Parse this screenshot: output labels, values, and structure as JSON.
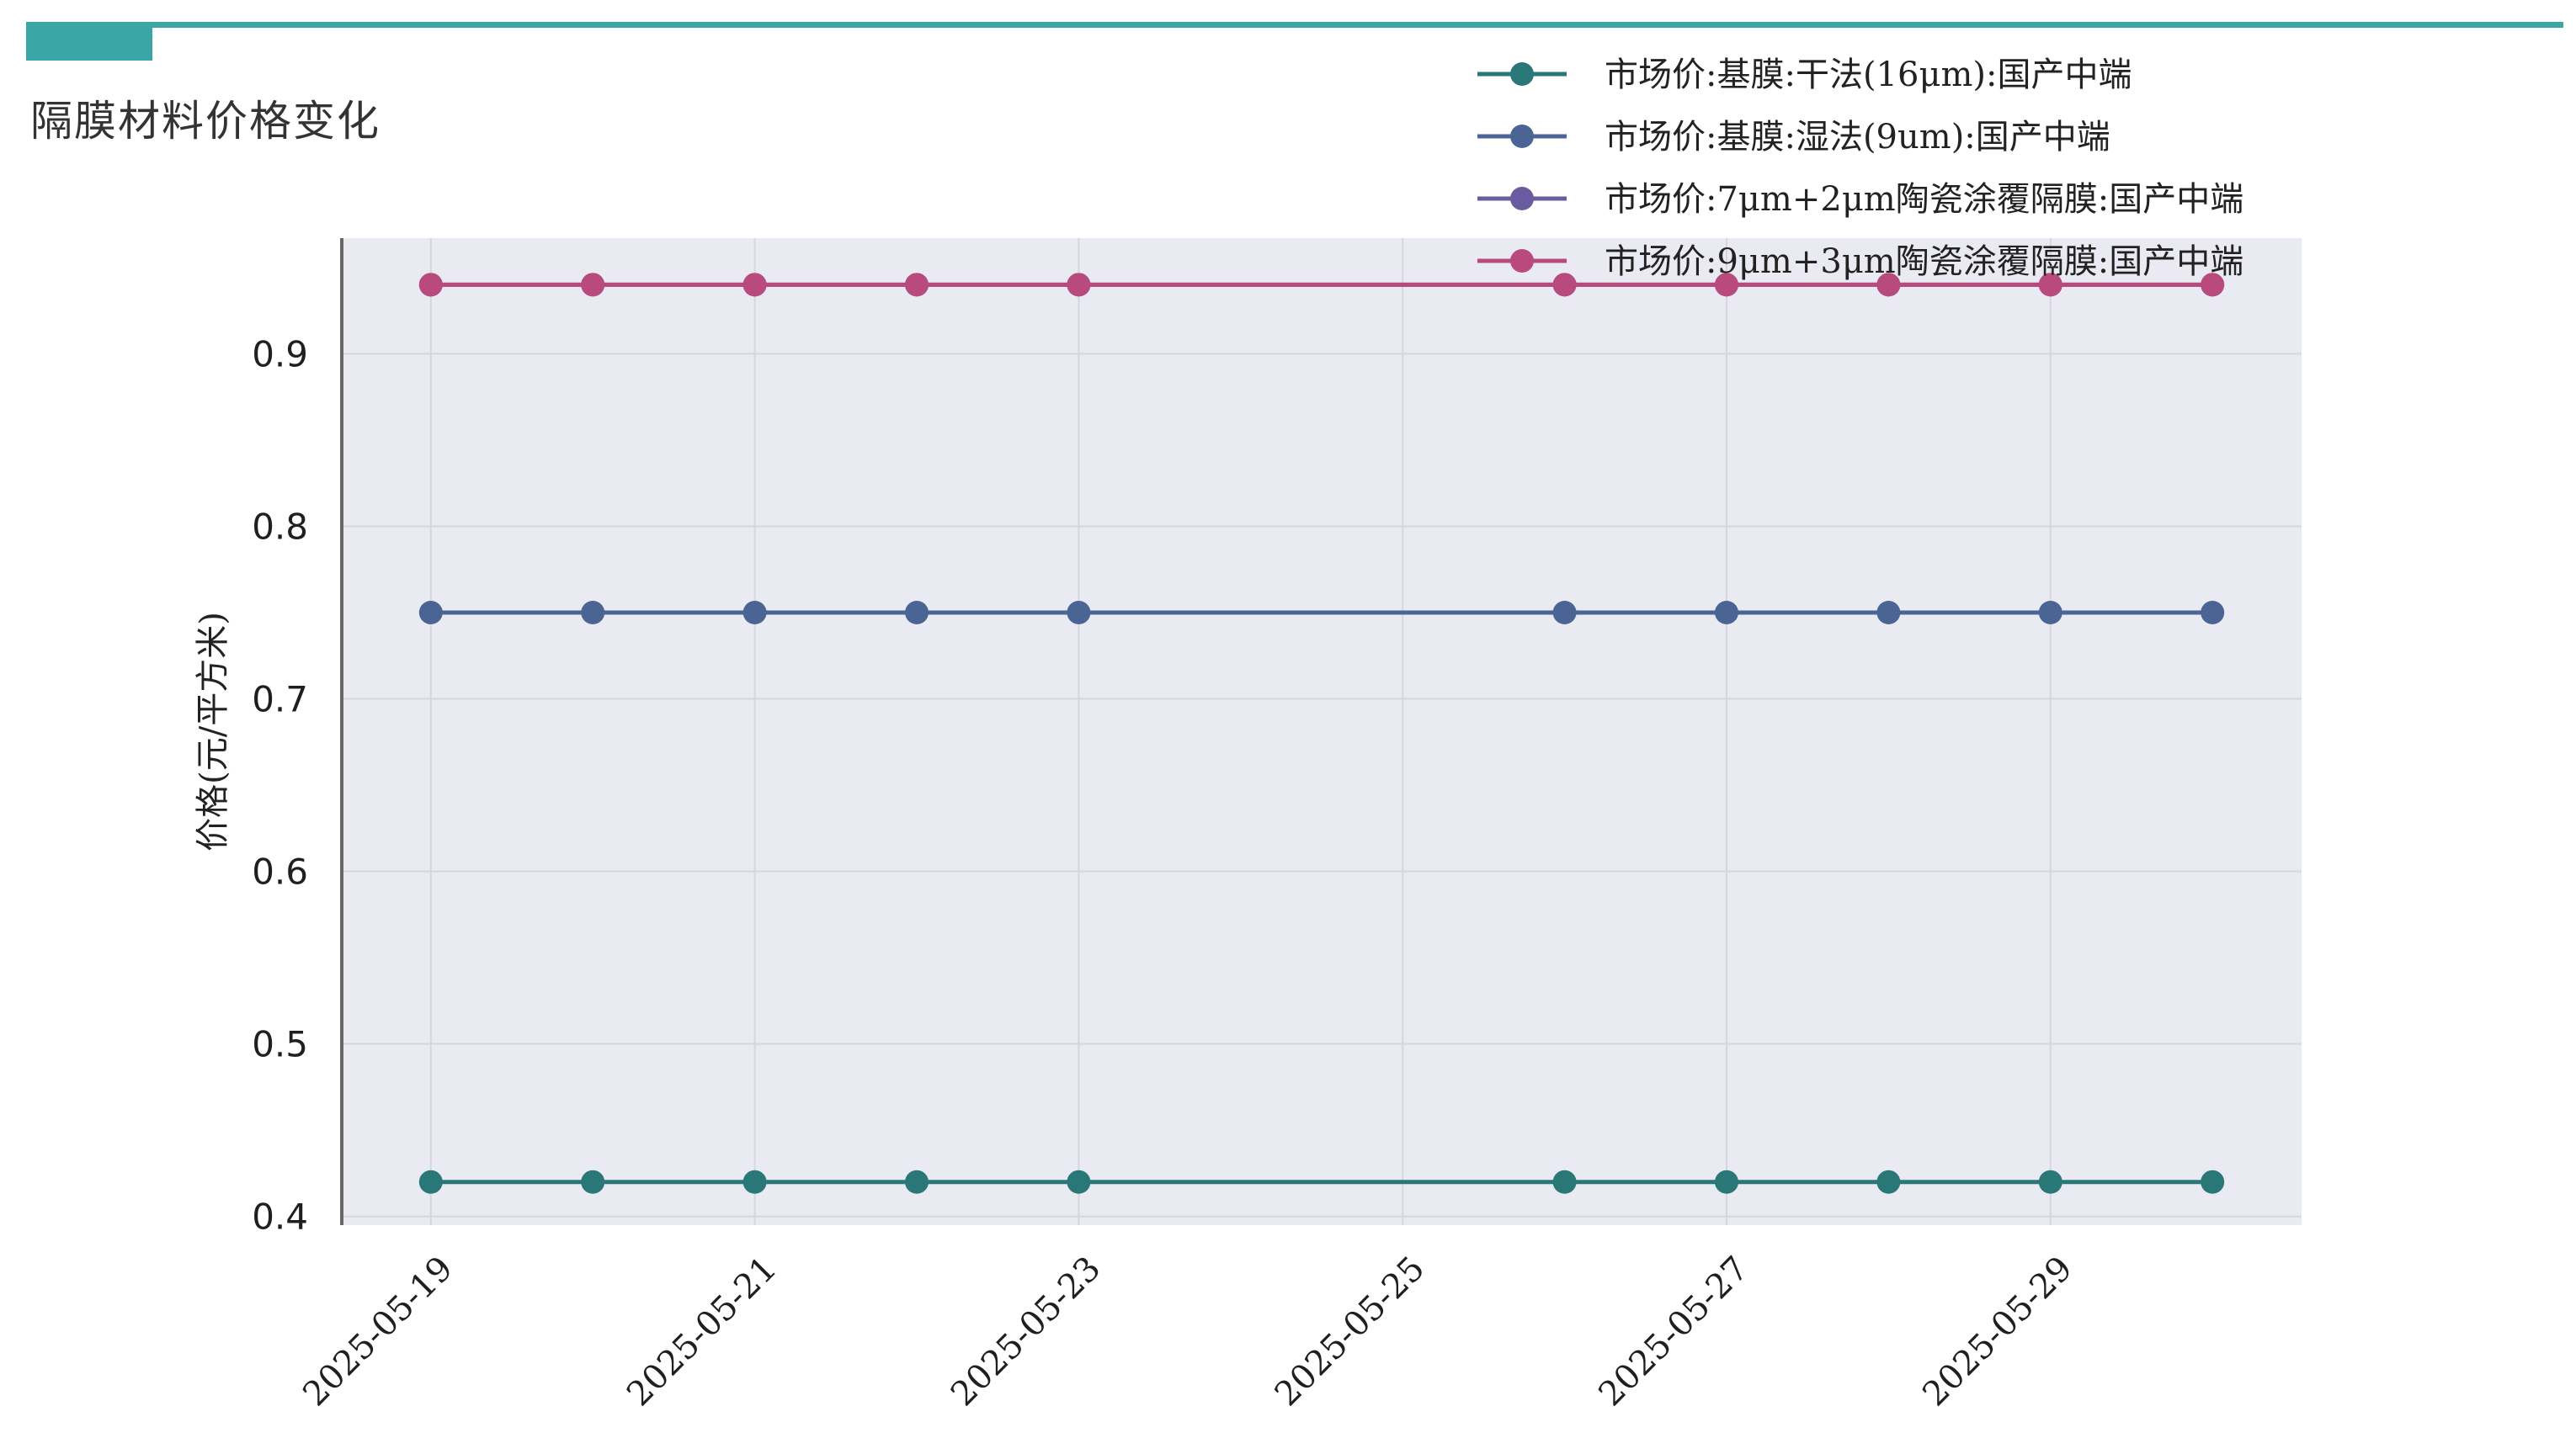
{
  "header": {
    "title": "隔膜材料价格变化"
  },
  "colors": {
    "accent": "#3aa6a6",
    "plot_bg": "#eaeaf2",
    "grid": "#d6d6de"
  },
  "chart_data": {
    "type": "line",
    "title": "隔膜材料价格变化",
    "xlabel": "",
    "ylabel": "价格(元/平方米)",
    "x": [
      "2025-05-19",
      "2025-05-20",
      "2025-05-21",
      "2025-05-22",
      "2025-05-23",
      "2025-05-26",
      "2025-05-27",
      "2025-05-28",
      "2025-05-29",
      "2025-05-30"
    ],
    "x_ticks": [
      "2025-05-19",
      "2025-05-21",
      "2025-05-23",
      "2025-05-25",
      "2025-05-27",
      "2025-05-29"
    ],
    "xlim": [
      "2025-05-18.45",
      "2025-05-30.55"
    ],
    "y_ticks": [
      0.4,
      0.5,
      0.6,
      0.7,
      0.8,
      0.9
    ],
    "ylim": [
      0.395,
      0.967
    ],
    "grid": true,
    "legend_position": "top-right",
    "series": [
      {
        "name": "市场价:基膜:干法(16μm):国产中端",
        "color": "#2a7778",
        "values": [
          0.42,
          0.42,
          0.42,
          0.42,
          0.42,
          0.42,
          0.42,
          0.42,
          0.42,
          0.42
        ]
      },
      {
        "name": "市场价:基膜:湿法(9um):国产中端",
        "color": "#4a6594",
        "values": [
          0.75,
          0.75,
          0.75,
          0.75,
          0.75,
          0.75,
          0.75,
          0.75,
          0.75,
          0.75
        ]
      },
      {
        "name": "市场价:7μm+2μm陶瓷涂覆隔膜:国产中端",
        "color": "#6b5ba0",
        "values": [
          0.94,
          0.94,
          0.94,
          0.94,
          0.94,
          0.94,
          0.94,
          0.94,
          0.94,
          0.94
        ]
      },
      {
        "name": "市场价:9μm+3μm陶瓷涂覆隔膜:国产中端",
        "color": "#b84a7e",
        "values": [
          0.94,
          0.94,
          0.94,
          0.94,
          0.94,
          0.94,
          0.94,
          0.94,
          0.94,
          0.94
        ]
      }
    ]
  }
}
